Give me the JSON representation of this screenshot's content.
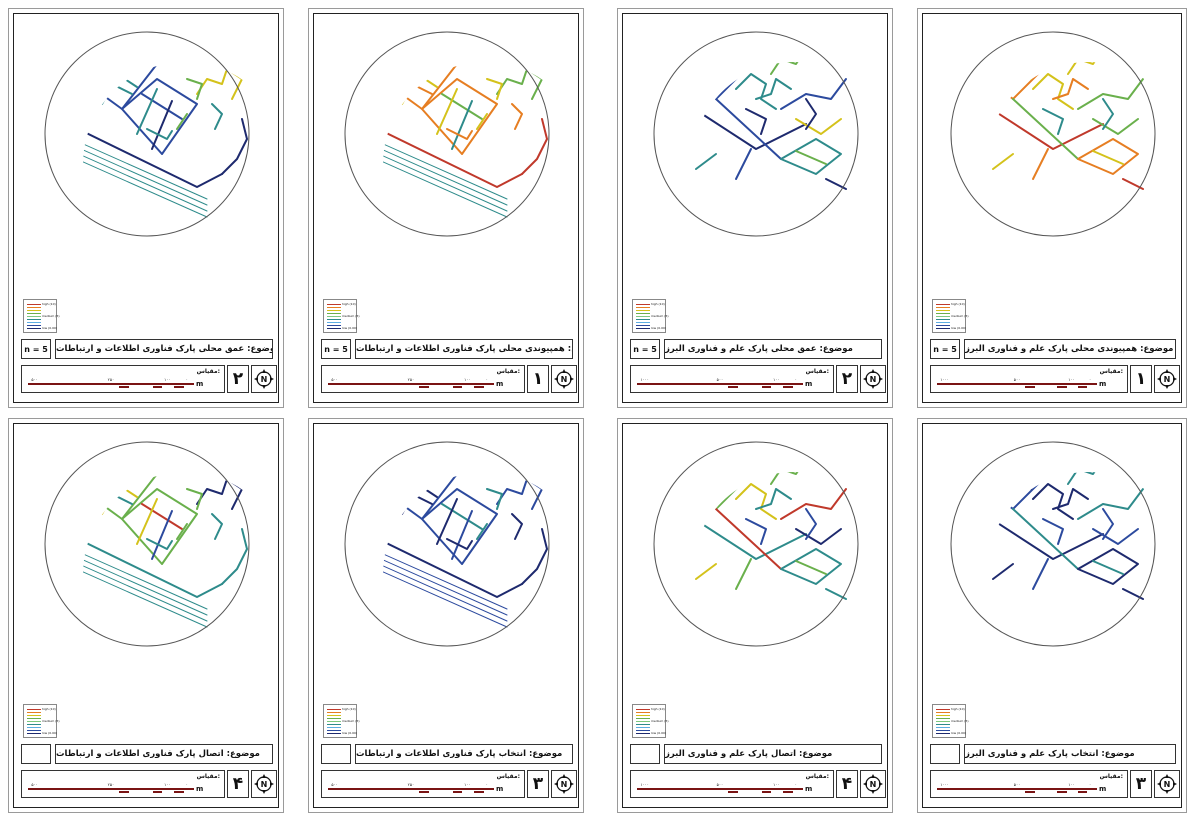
{
  "panels": [
    {
      "n": "n = 5",
      "title": "موضوع: عمق محلی پارک فناوری اطلاعات و ارتباطات",
      "number": "۲",
      "ticks": [
        "۵۰۰",
        "۲۵۰",
        "۱۰۰",
        "۰"
      ],
      "site": "a",
      "palette": "depth"
    },
    {
      "n": "n = 5",
      "title": "موضوع: همپیوندی محلی پارک فناوری اطلاعات و ارتباطات",
      "number": "۱",
      "ticks": [
        "۵۰۰",
        "۲۵۰",
        "۱۰۰",
        "۰"
      ],
      "site": "a",
      "palette": "integ"
    },
    {
      "n": "n = 5",
      "title": "موضوع: عمق محلی پارک علم و فناوری البرز",
      "number": "۲",
      "ticks": [
        "۱۰۰۰",
        "۵۰۰",
        "۱۰۰",
        "۰"
      ],
      "site": "b",
      "palette": "depth"
    },
    {
      "n": "n = 5",
      "title": "موضوع: همپیوندی محلی پارک علم و فناوری البرز",
      "number": "۱",
      "ticks": [
        "۱۰۰۰",
        "۵۰۰",
        "۱۰۰",
        "۰"
      ],
      "site": "b",
      "palette": "integ"
    },
    {
      "n": "",
      "title": "موضوع: اتصال پارک فناوری اطلاعات و ارتباطات",
      "number": "۴",
      "ticks": [
        "۵۰۰",
        "۲۵۰",
        "۱۰۰",
        "۰"
      ],
      "site": "a",
      "palette": "conn"
    },
    {
      "n": "",
      "title": "موضوع: انتخاب پارک فناوری اطلاعات و ارتباطات",
      "number": "۳",
      "ticks": [
        "۵۰۰",
        "۲۵۰",
        "۱۰۰",
        "۰"
      ],
      "site": "a",
      "palette": "choice"
    },
    {
      "n": "",
      "title": "موضوع: اتصال پارک علم و فناوری البرز",
      "number": "۴",
      "ticks": [
        "۱۰۰۰",
        "۵۰۰",
        "۱۰۰",
        "۰"
      ],
      "site": "b",
      "palette": "conn"
    },
    {
      "n": "",
      "title": "موضوع: انتخاب پارک علم و فناوری البرز",
      "number": "۳",
      "ticks": [
        "۱۰۰۰",
        "۵۰۰",
        "۱۰۰",
        "۰"
      ],
      "site": "b",
      "palette": "choice"
    }
  ],
  "legend": {
    "high": "high (10)",
    "medium": "medium (5)",
    "low": "low (0.00)"
  },
  "scale_label": "مقیاس:",
  "unit": "m",
  "north": "N",
  "colors": {
    "high": "#c0392b",
    "orange": "#e67e22",
    "yellow": "#d4c21b",
    "green": "#6ab04c",
    "teal": "#2e8b8b",
    "blue": "#2c4a9e",
    "navy": "#1e2a6e",
    "scale_bar": "#7a1414"
  }
}
